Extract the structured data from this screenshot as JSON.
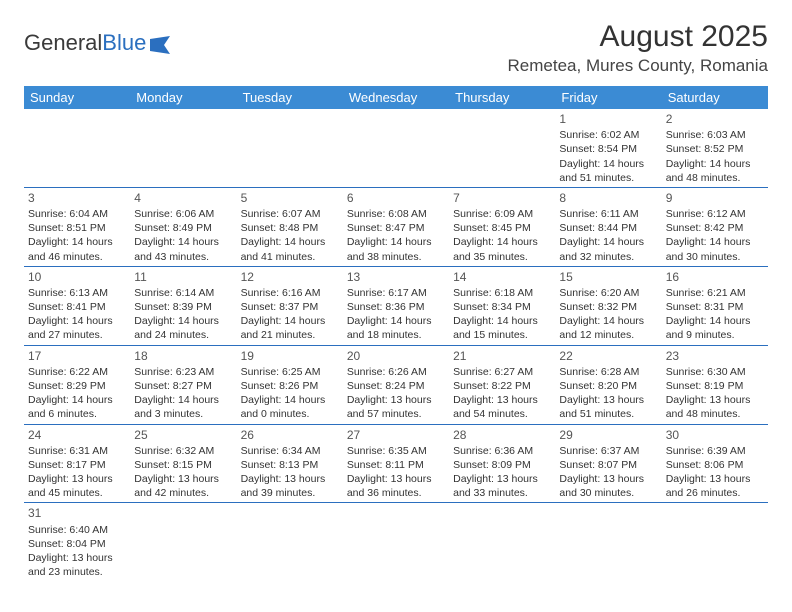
{
  "logo": {
    "text1": "General",
    "text2": "Blue"
  },
  "title": "August 2025",
  "location": "Remetea, Mures County, Romania",
  "colors": {
    "header_bg": "#3b8bd4",
    "header_text": "#ffffff",
    "border": "#2b6fbf",
    "text": "#333333"
  },
  "day_headers": [
    "Sunday",
    "Monday",
    "Tuesday",
    "Wednesday",
    "Thursday",
    "Friday",
    "Saturday"
  ],
  "weeks": [
    [
      null,
      null,
      null,
      null,
      null,
      {
        "n": "1",
        "sr": "Sunrise: 6:02 AM",
        "ss": "Sunset: 8:54 PM",
        "d1": "Daylight: 14 hours",
        "d2": "and 51 minutes."
      },
      {
        "n": "2",
        "sr": "Sunrise: 6:03 AM",
        "ss": "Sunset: 8:52 PM",
        "d1": "Daylight: 14 hours",
        "d2": "and 48 minutes."
      }
    ],
    [
      {
        "n": "3",
        "sr": "Sunrise: 6:04 AM",
        "ss": "Sunset: 8:51 PM",
        "d1": "Daylight: 14 hours",
        "d2": "and 46 minutes."
      },
      {
        "n": "4",
        "sr": "Sunrise: 6:06 AM",
        "ss": "Sunset: 8:49 PM",
        "d1": "Daylight: 14 hours",
        "d2": "and 43 minutes."
      },
      {
        "n": "5",
        "sr": "Sunrise: 6:07 AM",
        "ss": "Sunset: 8:48 PM",
        "d1": "Daylight: 14 hours",
        "d2": "and 41 minutes."
      },
      {
        "n": "6",
        "sr": "Sunrise: 6:08 AM",
        "ss": "Sunset: 8:47 PM",
        "d1": "Daylight: 14 hours",
        "d2": "and 38 minutes."
      },
      {
        "n": "7",
        "sr": "Sunrise: 6:09 AM",
        "ss": "Sunset: 8:45 PM",
        "d1": "Daylight: 14 hours",
        "d2": "and 35 minutes."
      },
      {
        "n": "8",
        "sr": "Sunrise: 6:11 AM",
        "ss": "Sunset: 8:44 PM",
        "d1": "Daylight: 14 hours",
        "d2": "and 32 minutes."
      },
      {
        "n": "9",
        "sr": "Sunrise: 6:12 AM",
        "ss": "Sunset: 8:42 PM",
        "d1": "Daylight: 14 hours",
        "d2": "and 30 minutes."
      }
    ],
    [
      {
        "n": "10",
        "sr": "Sunrise: 6:13 AM",
        "ss": "Sunset: 8:41 PM",
        "d1": "Daylight: 14 hours",
        "d2": "and 27 minutes."
      },
      {
        "n": "11",
        "sr": "Sunrise: 6:14 AM",
        "ss": "Sunset: 8:39 PM",
        "d1": "Daylight: 14 hours",
        "d2": "and 24 minutes."
      },
      {
        "n": "12",
        "sr": "Sunrise: 6:16 AM",
        "ss": "Sunset: 8:37 PM",
        "d1": "Daylight: 14 hours",
        "d2": "and 21 minutes."
      },
      {
        "n": "13",
        "sr": "Sunrise: 6:17 AM",
        "ss": "Sunset: 8:36 PM",
        "d1": "Daylight: 14 hours",
        "d2": "and 18 minutes."
      },
      {
        "n": "14",
        "sr": "Sunrise: 6:18 AM",
        "ss": "Sunset: 8:34 PM",
        "d1": "Daylight: 14 hours",
        "d2": "and 15 minutes."
      },
      {
        "n": "15",
        "sr": "Sunrise: 6:20 AM",
        "ss": "Sunset: 8:32 PM",
        "d1": "Daylight: 14 hours",
        "d2": "and 12 minutes."
      },
      {
        "n": "16",
        "sr": "Sunrise: 6:21 AM",
        "ss": "Sunset: 8:31 PM",
        "d1": "Daylight: 14 hours",
        "d2": "and 9 minutes."
      }
    ],
    [
      {
        "n": "17",
        "sr": "Sunrise: 6:22 AM",
        "ss": "Sunset: 8:29 PM",
        "d1": "Daylight: 14 hours",
        "d2": "and 6 minutes."
      },
      {
        "n": "18",
        "sr": "Sunrise: 6:23 AM",
        "ss": "Sunset: 8:27 PM",
        "d1": "Daylight: 14 hours",
        "d2": "and 3 minutes."
      },
      {
        "n": "19",
        "sr": "Sunrise: 6:25 AM",
        "ss": "Sunset: 8:26 PM",
        "d1": "Daylight: 14 hours",
        "d2": "and 0 minutes."
      },
      {
        "n": "20",
        "sr": "Sunrise: 6:26 AM",
        "ss": "Sunset: 8:24 PM",
        "d1": "Daylight: 13 hours",
        "d2": "and 57 minutes."
      },
      {
        "n": "21",
        "sr": "Sunrise: 6:27 AM",
        "ss": "Sunset: 8:22 PM",
        "d1": "Daylight: 13 hours",
        "d2": "and 54 minutes."
      },
      {
        "n": "22",
        "sr": "Sunrise: 6:28 AM",
        "ss": "Sunset: 8:20 PM",
        "d1": "Daylight: 13 hours",
        "d2": "and 51 minutes."
      },
      {
        "n": "23",
        "sr": "Sunrise: 6:30 AM",
        "ss": "Sunset: 8:19 PM",
        "d1": "Daylight: 13 hours",
        "d2": "and 48 minutes."
      }
    ],
    [
      {
        "n": "24",
        "sr": "Sunrise: 6:31 AM",
        "ss": "Sunset: 8:17 PM",
        "d1": "Daylight: 13 hours",
        "d2": "and 45 minutes."
      },
      {
        "n": "25",
        "sr": "Sunrise: 6:32 AM",
        "ss": "Sunset: 8:15 PM",
        "d1": "Daylight: 13 hours",
        "d2": "and 42 minutes."
      },
      {
        "n": "26",
        "sr": "Sunrise: 6:34 AM",
        "ss": "Sunset: 8:13 PM",
        "d1": "Daylight: 13 hours",
        "d2": "and 39 minutes."
      },
      {
        "n": "27",
        "sr": "Sunrise: 6:35 AM",
        "ss": "Sunset: 8:11 PM",
        "d1": "Daylight: 13 hours",
        "d2": "and 36 minutes."
      },
      {
        "n": "28",
        "sr": "Sunrise: 6:36 AM",
        "ss": "Sunset: 8:09 PM",
        "d1": "Daylight: 13 hours",
        "d2": "and 33 minutes."
      },
      {
        "n": "29",
        "sr": "Sunrise: 6:37 AM",
        "ss": "Sunset: 8:07 PM",
        "d1": "Daylight: 13 hours",
        "d2": "and 30 minutes."
      },
      {
        "n": "30",
        "sr": "Sunrise: 6:39 AM",
        "ss": "Sunset: 8:06 PM",
        "d1": "Daylight: 13 hours",
        "d2": "and 26 minutes."
      }
    ],
    [
      {
        "n": "31",
        "sr": "Sunrise: 6:40 AM",
        "ss": "Sunset: 8:04 PM",
        "d1": "Daylight: 13 hours",
        "d2": "and 23 minutes."
      },
      null,
      null,
      null,
      null,
      null,
      null
    ]
  ]
}
